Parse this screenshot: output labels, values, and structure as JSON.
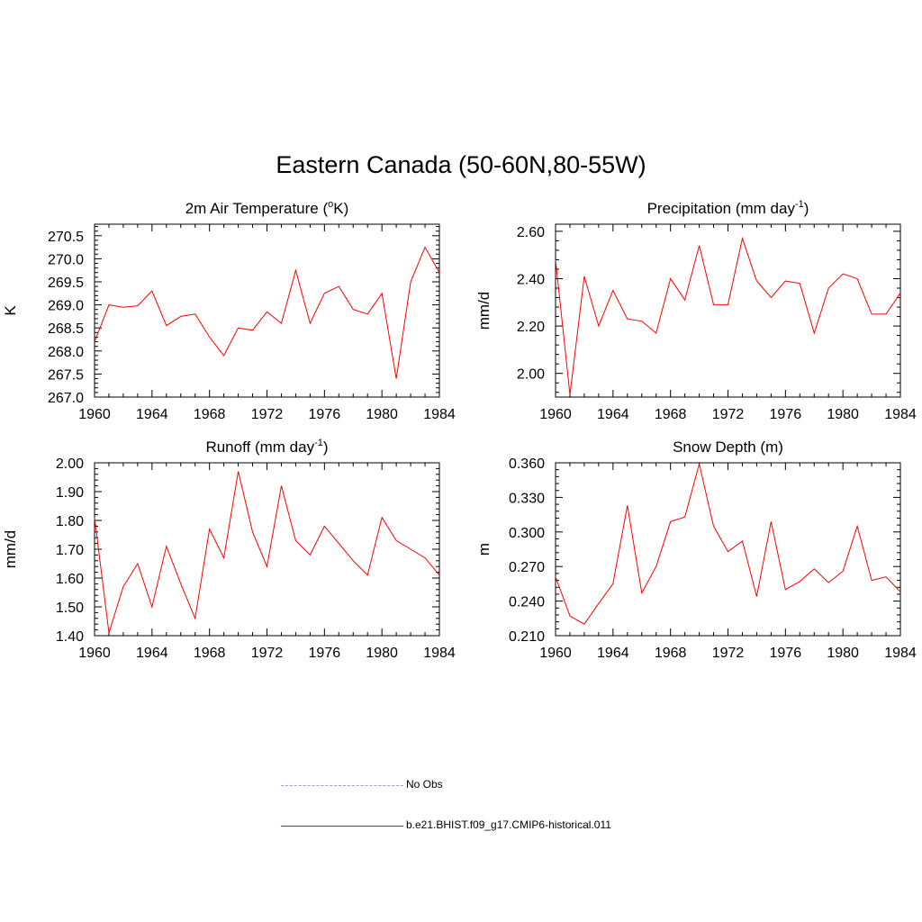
{
  "figure": {
    "title": "Eastern Canada (50-60N,80-55W)"
  },
  "legend": {
    "items": [
      {
        "label": "No Obs",
        "color": "#9999ff",
        "style": "dashed"
      },
      {
        "label": "b.e21.BHIST.f09_g17.CMIP6-historical.011",
        "color": "#ff0000",
        "style": "solid"
      }
    ]
  },
  "chart_data": [
    {
      "type": "line",
      "title": "2m Air Temperature (oK)",
      "title_parts": [
        "2m Air Temperature (",
        "o",
        "K)"
      ],
      "title_sup_index": 1,
      "ylabel": "K",
      "xlabel": "",
      "xlim": [
        1960,
        1984
      ],
      "ylim": [
        267.0,
        270.75
      ],
      "xticks": [
        "1960",
        "1964",
        "1968",
        "1972",
        "1976",
        "1980",
        "1984"
      ],
      "yticks": [
        "267.0",
        "267.5",
        "268.0",
        "268.5",
        "269.0",
        "269.5",
        "270.0",
        "270.5"
      ],
      "grid": false,
      "x": [
        1960,
        1961,
        1962,
        1963,
        1964,
        1965,
        1966,
        1967,
        1968,
        1969,
        1970,
        1971,
        1972,
        1973,
        1974,
        1975,
        1976,
        1977,
        1978,
        1979,
        1980,
        1981,
        1982,
        1983,
        1984
      ],
      "series": [
        {
          "color": "#ff0000",
          "values": [
            268.2,
            269.0,
            268.95,
            268.98,
            269.3,
            268.55,
            268.75,
            268.8,
            268.3,
            267.9,
            268.5,
            268.45,
            268.85,
            268.6,
            269.75,
            268.6,
            269.25,
            269.4,
            268.9,
            268.8,
            269.25,
            267.4,
            269.5,
            270.25,
            269.7
          ]
        }
      ]
    },
    {
      "type": "line",
      "title": "Precipitation (mm day-1)",
      "title_parts": [
        "Precipitation (mm day",
        "-1",
        ")"
      ],
      "title_sup_index": 1,
      "ylabel": "mm/d",
      "xlabel": "",
      "xlim": [
        1960,
        1984
      ],
      "ylim": [
        1.9,
        2.63
      ],
      "xticks": [
        "1960",
        "1964",
        "1968",
        "1972",
        "1976",
        "1980",
        "1984"
      ],
      "yticks": [
        "2.00",
        "2.20",
        "2.40",
        "2.60"
      ],
      "grid": false,
      "x": [
        1960,
        1961,
        1962,
        1963,
        1964,
        1965,
        1966,
        1967,
        1968,
        1969,
        1970,
        1971,
        1972,
        1973,
        1974,
        1975,
        1976,
        1977,
        1978,
        1979,
        1980,
        1981,
        1982,
        1983,
        1984
      ],
      "series": [
        {
          "color": "#ff0000",
          "values": [
            2.48,
            1.91,
            2.41,
            2.2,
            2.35,
            2.23,
            2.22,
            2.17,
            2.4,
            2.31,
            2.54,
            2.29,
            2.29,
            2.57,
            2.39,
            2.32,
            2.39,
            2.38,
            2.17,
            2.36,
            2.42,
            2.4,
            2.25,
            2.25,
            2.34
          ]
        }
      ]
    },
    {
      "type": "line",
      "title": "Runoff (mm day-1)",
      "title_parts": [
        "Runoff (mm day",
        "-1",
        ")"
      ],
      "title_sup_index": 1,
      "ylabel": "mm/d",
      "xlabel": "",
      "xlim": [
        1960,
        1984
      ],
      "ylim": [
        1.4,
        2.0
      ],
      "xticks": [
        "1960",
        "1964",
        "1968",
        "1972",
        "1976",
        "1980",
        "1984"
      ],
      "yticks": [
        "1.40",
        "1.50",
        "1.60",
        "1.70",
        "1.80",
        "1.90",
        "2.00"
      ],
      "grid": false,
      "x": [
        1960,
        1961,
        1962,
        1963,
        1964,
        1965,
        1966,
        1967,
        1968,
        1969,
        1970,
        1971,
        1972,
        1973,
        1974,
        1975,
        1976,
        1977,
        1978,
        1979,
        1980,
        1981,
        1982,
        1983,
        1984
      ],
      "series": [
        {
          "color": "#ff0000",
          "values": [
            1.81,
            1.41,
            1.57,
            1.65,
            1.5,
            1.71,
            1.58,
            1.46,
            1.77,
            1.67,
            1.97,
            1.76,
            1.64,
            1.92,
            1.73,
            1.68,
            1.78,
            1.72,
            1.66,
            1.61,
            1.81,
            1.73,
            1.7,
            1.67,
            1.61
          ]
        }
      ]
    },
    {
      "type": "line",
      "title": "Snow Depth (m)",
      "title_parts": [
        "Snow Depth (m)",
        "",
        ""
      ],
      "title_sup_index": -1,
      "ylabel": "m",
      "xlabel": "",
      "xlim": [
        1960,
        1984
      ],
      "ylim": [
        0.21,
        0.36
      ],
      "xticks": [
        "1960",
        "1964",
        "1968",
        "1972",
        "1976",
        "1980",
        "1984"
      ],
      "yticks": [
        "0.210",
        "0.240",
        "0.270",
        "0.300",
        "0.330",
        "0.360"
      ],
      "grid": false,
      "x": [
        1960,
        1961,
        1962,
        1963,
        1964,
        1965,
        1966,
        1967,
        1968,
        1969,
        1970,
        1971,
        1972,
        1973,
        1974,
        1975,
        1976,
        1977,
        1978,
        1979,
        1980,
        1981,
        1982,
        1983,
        1984
      ],
      "series": [
        {
          "color": "#ff0000",
          "values": [
            0.261,
            0.227,
            0.22,
            0.238,
            0.255,
            0.323,
            0.247,
            0.27,
            0.309,
            0.313,
            0.359,
            0.305,
            0.283,
            0.292,
            0.244,
            0.309,
            0.25,
            0.257,
            0.268,
            0.256,
            0.266,
            0.305,
            0.258,
            0.261,
            0.248
          ]
        }
      ]
    }
  ]
}
